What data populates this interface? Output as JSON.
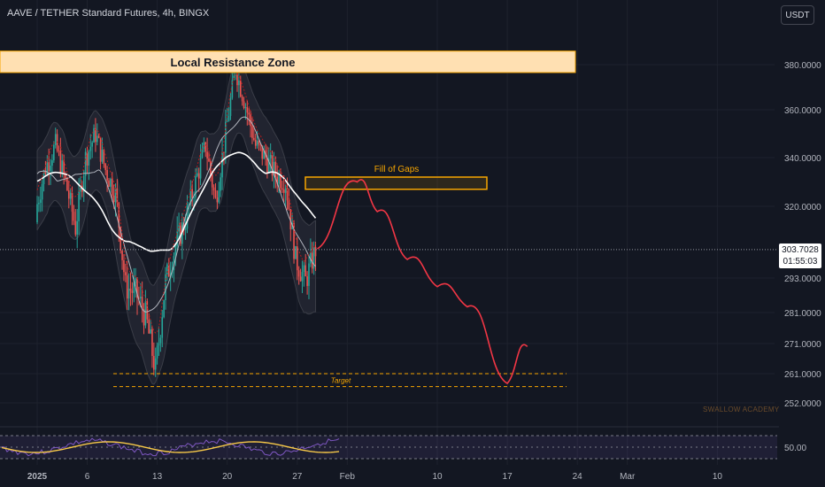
{
  "header": {
    "symbol_title": "AAVE / TETHER Standard Futures, 4h, BINGX",
    "currency_button": "USDT"
  },
  "price_axis": {
    "ticks": [
      "380.0000",
      "360.0000",
      "340.0000",
      "320.0000",
      "293.0000",
      "281.0000",
      "271.0000",
      "261.0000",
      "252.0000"
    ],
    "current_price": "303.7028",
    "countdown": "01:55:03"
  },
  "time_axis": {
    "labels": [
      "2025",
      "6",
      "13",
      "20",
      "27",
      "Feb",
      "10",
      "17",
      "24",
      "Mar",
      "10"
    ]
  },
  "annotations": {
    "resistance_zone": "Local Resistance Zone",
    "gap_zone": "Fill of Gaps",
    "target": "Target",
    "watermark": "SWALLOW ACADEMY"
  },
  "oscillator": {
    "level_label": "50.00",
    "level": 50
  },
  "colors": {
    "background": "#131722",
    "bull_candle": "#26a69a",
    "bear_candle": "#ef5350",
    "resistance_fill": "#ffe0b2",
    "resistance_border": "#f7a600",
    "projection": "#f23645",
    "target_line": "#f7a600",
    "oscillator_line": "#f7c948",
    "oscillator_fill": "#7e57c2"
  },
  "chart_data": {
    "type": "candlestick",
    "interval": "4h",
    "price_range": [
      245,
      392
    ],
    "resistance_zone": [
      376.5,
      386
    ],
    "gap_zone": [
      327,
      332
    ],
    "target_levels": [
      261,
      257
    ],
    "x_dates": [
      "2025-01-01",
      "2025-01-06",
      "2025-01-13",
      "2025-01-20",
      "2025-01-27",
      "2025-02-01",
      "2025-02-10",
      "2025-02-17",
      "2025-02-24",
      "2025-03-01",
      "2025-03-10"
    ],
    "closes_daily_approx": [
      {
        "date": "2025-01-01",
        "close": 318
      },
      {
        "date": "2025-01-02",
        "close": 336
      },
      {
        "date": "2025-01-03",
        "close": 345
      },
      {
        "date": "2025-01-04",
        "close": 330
      },
      {
        "date": "2025-01-05",
        "close": 312
      },
      {
        "date": "2025-01-06",
        "close": 340
      },
      {
        "date": "2025-01-07",
        "close": 350
      },
      {
        "date": "2025-01-08",
        "close": 335
      },
      {
        "date": "2025-01-09",
        "close": 325
      },
      {
        "date": "2025-01-10",
        "close": 290
      },
      {
        "date": "2025-01-11",
        "close": 288
      },
      {
        "date": "2025-01-12",
        "close": 280
      },
      {
        "date": "2025-01-13",
        "close": 262
      },
      {
        "date": "2025-01-14",
        "close": 292
      },
      {
        "date": "2025-01-15",
        "close": 305
      },
      {
        "date": "2025-01-16",
        "close": 315
      },
      {
        "date": "2025-01-17",
        "close": 330
      },
      {
        "date": "2025-01-18",
        "close": 345
      },
      {
        "date": "2025-01-19",
        "close": 322
      },
      {
        "date": "2025-01-20",
        "close": 350
      },
      {
        "date": "2025-01-21",
        "close": 378
      },
      {
        "date": "2025-01-22",
        "close": 362
      },
      {
        "date": "2025-01-23",
        "close": 345
      },
      {
        "date": "2025-01-24",
        "close": 340
      },
      {
        "date": "2025-01-25",
        "close": 333
      },
      {
        "date": "2025-01-26",
        "close": 330
      },
      {
        "date": "2025-01-27",
        "close": 300
      },
      {
        "date": "2025-01-28",
        "close": 292
      },
      {
        "date": "2025-01-29",
        "close": 303.7
      }
    ],
    "projection_path": [
      {
        "date": "2025-01-29",
        "price": 304
      },
      {
        "date": "2025-02-02",
        "price": 330
      },
      {
        "date": "2025-02-04",
        "price": 318
      },
      {
        "date": "2025-02-07",
        "price": 300
      },
      {
        "date": "2025-02-10",
        "price": 290
      },
      {
        "date": "2025-02-13",
        "price": 283
      },
      {
        "date": "2025-02-17",
        "price": 258
      },
      {
        "date": "2025-02-19",
        "price": 270
      }
    ]
  }
}
